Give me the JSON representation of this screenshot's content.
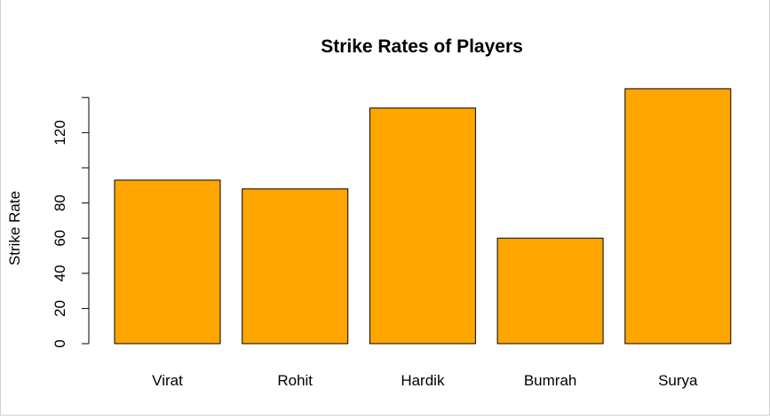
{
  "chart_data": {
    "type": "bar",
    "title": "Strike Rates of Players",
    "xlabel": "",
    "ylabel": "Strike Rate",
    "categories": [
      "Virat",
      "Rohit",
      "Hardik",
      "Bumrah",
      "Surya"
    ],
    "values": [
      93,
      88,
      134,
      60,
      145
    ],
    "yticks": [
      0,
      20,
      40,
      60,
      80,
      100,
      120,
      140
    ],
    "ytick_labels": [
      "0",
      "20",
      "40",
      "60",
      "80",
      "",
      "120",
      ""
    ],
    "ylim": [
      0,
      145
    ],
    "bar_color": "#FFA500",
    "grid": false,
    "legend": "none"
  }
}
